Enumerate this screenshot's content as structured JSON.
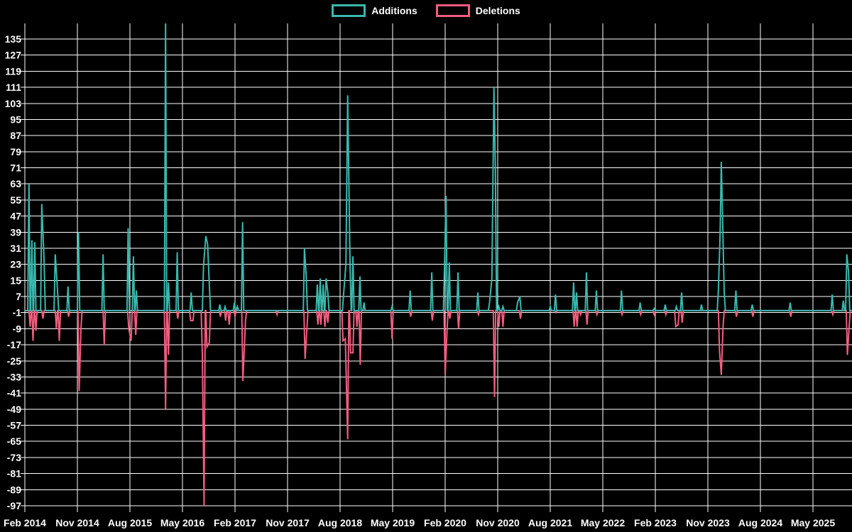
{
  "chart_data": {
    "type": "line",
    "title": "",
    "description": "Weekly code additions and deletions spike chart on black background",
    "background_color": "#000000",
    "grid_color": "#ffffff",
    "grid": true,
    "legend_position": "top-center",
    "x_axis": {
      "unit": "months since Feb 2014",
      "tick_interval_months": 9,
      "tick_labels": [
        "Feb 2014",
        "Nov 2014",
        "Aug 2015",
        "May 2016",
        "Feb 2017",
        "Nov 2017",
        "Aug 2018",
        "May 2019",
        "Feb 2020",
        "Nov 2020",
        "Aug 2021",
        "May 2022",
        "Feb 2023",
        "Nov 2023",
        "Aug 2024",
        "May 2025"
      ]
    },
    "y_axis": {
      "tick_values": [
        135,
        127,
        119,
        111,
        103,
        95,
        87,
        79,
        71,
        63,
        55,
        47,
        39,
        31,
        23,
        15,
        7,
        -1,
        -9,
        -17,
        -25,
        -33,
        -41,
        -49,
        -57,
        -65,
        -73,
        -81,
        -89,
        -97
      ],
      "visible_range": [
        -97,
        144
      ]
    },
    "series": [
      {
        "name": "Additions",
        "color": "#39b9ae",
        "baseline": 0,
        "points": [
          [
            0.7,
            63
          ],
          [
            1.2,
            35
          ],
          [
            1.7,
            34
          ],
          [
            2.9,
            53
          ],
          [
            3.3,
            25
          ],
          [
            5.2,
            28
          ],
          [
            5.6,
            10
          ],
          [
            7.4,
            12
          ],
          [
            9.2,
            39
          ],
          [
            13.4,
            28
          ],
          [
            17.7,
            41
          ],
          [
            18.6,
            27
          ],
          [
            19.1,
            10
          ],
          [
            24.1,
            144
          ],
          [
            24.6,
            14
          ],
          [
            26.1,
            29
          ],
          [
            28.5,
            9
          ],
          [
            30.6,
            22
          ],
          [
            31.0,
            37
          ],
          [
            31.3,
            33
          ],
          [
            31.6,
            13
          ],
          [
            33.4,
            3
          ],
          [
            34.3,
            2
          ],
          [
            35.9,
            4
          ],
          [
            36.4,
            2
          ],
          [
            37.3,
            44
          ],
          [
            47.9,
            31
          ],
          [
            48.2,
            17
          ],
          [
            50.1,
            13
          ],
          [
            50.6,
            16
          ],
          [
            51.1,
            13
          ],
          [
            51.6,
            16
          ],
          [
            51.9,
            9
          ],
          [
            54.6,
            8
          ],
          [
            55.0,
            23
          ],
          [
            55.3,
            107
          ],
          [
            55.7,
            23
          ],
          [
            56.2,
            27
          ],
          [
            57.4,
            17
          ],
          [
            58.1,
            4
          ],
          [
            62.9,
            2
          ],
          [
            66.0,
            10
          ],
          [
            69.7,
            19
          ],
          [
            71.9,
            24
          ],
          [
            72.15,
            57
          ],
          [
            72.7,
            24
          ],
          [
            74.2,
            19
          ],
          [
            77.6,
            9
          ],
          [
            79.6,
            4
          ],
          [
            80.0,
            16
          ],
          [
            80.35,
            111
          ],
          [
            80.6,
            70
          ],
          [
            81.2,
            2
          ],
          [
            81.9,
            2
          ],
          [
            84.4,
            4
          ],
          [
            84.8,
            7
          ],
          [
            90.0,
            2
          ],
          [
            90.9,
            8
          ],
          [
            94.0,
            14
          ],
          [
            94.5,
            9
          ],
          [
            96.2,
            19
          ],
          [
            97.9,
            10
          ],
          [
            102.2,
            10
          ],
          [
            105.4,
            4
          ],
          [
            107.8,
            1
          ],
          [
            109.7,
            3
          ],
          [
            111.6,
            2
          ],
          [
            112.5,
            9
          ],
          [
            115.9,
            3
          ],
          [
            118.8,
            10
          ],
          [
            119.1,
            39
          ],
          [
            119.3,
            74
          ],
          [
            119.5,
            48
          ],
          [
            119.8,
            9
          ],
          [
            121.8,
            10
          ],
          [
            124.6,
            3
          ],
          [
            131.1,
            4
          ],
          [
            138.3,
            8
          ],
          [
            140.2,
            5
          ],
          [
            140.8,
            28
          ],
          [
            141.1,
            19
          ]
        ]
      },
      {
        "name": "Deletions",
        "color": "#f35d7f",
        "baseline": 0,
        "points": [
          [
            0.9,
            -8
          ],
          [
            1.4,
            -15
          ],
          [
            1.9,
            -10
          ],
          [
            3.1,
            -4
          ],
          [
            5.4,
            -9
          ],
          [
            5.9,
            -15
          ],
          [
            7.5,
            -3
          ],
          [
            9.3,
            -40
          ],
          [
            9.6,
            -10
          ],
          [
            13.6,
            -17
          ],
          [
            17.8,
            -9
          ],
          [
            18.2,
            -15
          ],
          [
            19.0,
            -12
          ],
          [
            24.1,
            -49
          ],
          [
            24.6,
            -22
          ],
          [
            26.2,
            -4
          ],
          [
            28.4,
            -5
          ],
          [
            28.8,
            -5
          ],
          [
            30.4,
            -22
          ],
          [
            30.7,
            -97
          ],
          [
            31.2,
            -18
          ],
          [
            31.6,
            -16
          ],
          [
            33.5,
            -3
          ],
          [
            34.4,
            -5
          ],
          [
            35.0,
            -7
          ],
          [
            36.0,
            -3
          ],
          [
            37.35,
            -35
          ],
          [
            37.8,
            -5
          ],
          [
            43.2,
            -2
          ],
          [
            48.0,
            -24
          ],
          [
            48.3,
            -10
          ],
          [
            50.2,
            -7
          ],
          [
            50.7,
            -7
          ],
          [
            51.4,
            -8
          ],
          [
            51.9,
            -6
          ],
          [
            54.5,
            -15
          ],
          [
            54.9,
            -14
          ],
          [
            55.3,
            -64
          ],
          [
            55.8,
            -21
          ],
          [
            56.2,
            -21
          ],
          [
            56.9,
            -8
          ],
          [
            57.45,
            -27
          ],
          [
            62.9,
            -14
          ],
          [
            66.1,
            -3
          ],
          [
            69.8,
            -5
          ],
          [
            72.0,
            -32
          ],
          [
            72.3,
            -11
          ],
          [
            72.8,
            -4
          ],
          [
            74.3,
            -9
          ],
          [
            77.7,
            -2
          ],
          [
            80.45,
            -43
          ],
          [
            81.2,
            -8
          ],
          [
            81.9,
            -8
          ],
          [
            84.9,
            -4
          ],
          [
            91.0,
            -1
          ],
          [
            94.1,
            -8
          ],
          [
            94.6,
            -8
          ],
          [
            95.2,
            -2
          ],
          [
            96.3,
            -7
          ],
          [
            98.0,
            -2
          ],
          [
            102.3,
            -2
          ],
          [
            105.5,
            -2
          ],
          [
            107.8,
            -2
          ],
          [
            109.8,
            -2
          ],
          [
            111.5,
            -8
          ],
          [
            111.9,
            -7
          ],
          [
            112.6,
            -6
          ],
          [
            119.0,
            -20
          ],
          [
            119.3,
            -32
          ],
          [
            119.6,
            -8
          ],
          [
            121.9,
            -3
          ],
          [
            124.7,
            -3
          ],
          [
            131.2,
            -3
          ],
          [
            138.4,
            -2
          ],
          [
            140.9,
            -22
          ],
          [
            141.2,
            -8
          ]
        ]
      }
    ]
  },
  "legend": {
    "additions_label": "Additions",
    "deletions_label": "Deletions"
  }
}
